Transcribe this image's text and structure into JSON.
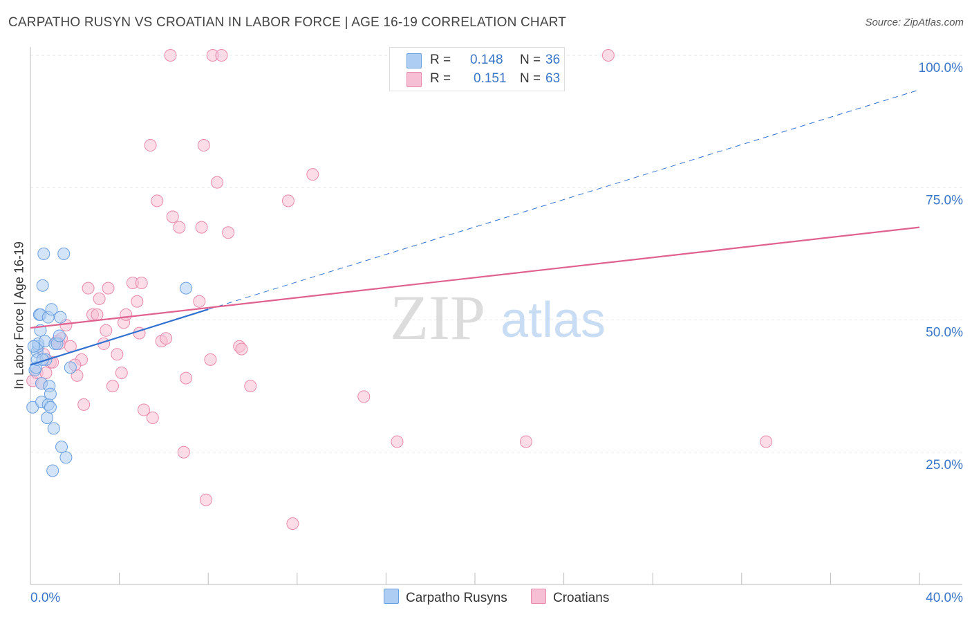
{
  "title": "CARPATHO RUSYN VS CROATIAN IN LABOR FORCE | AGE 16-19 CORRELATION CHART",
  "source": "Source: ZipAtlas.com",
  "watermark": {
    "zip": "ZIP",
    "atlas": "atlas"
  },
  "legend": {
    "r_label": "R =",
    "n_label": "N =",
    "rows": [
      {
        "name": "Carpatho Rusyns",
        "r": "0.148",
        "n": "36"
      },
      {
        "name": "Croatians",
        "r": "0.151",
        "n": "63"
      }
    ]
  },
  "colors": {
    "blue_fill": "#aecdf3",
    "blue_stroke": "#6a9fe0",
    "blue_line": "#3070d0",
    "pink_fill": "#f7bfd3",
    "pink_stroke": "#e88aab",
    "pink_line": "#e0608f",
    "axis_text": "#3a76c8"
  },
  "chart_data": {
    "type": "scatter",
    "title": "CARPATHO RUSYN VS CROATIAN IN LABOR FORCE | AGE 16-19 CORRELATION CHART",
    "xlabel": "",
    "ylabel": "In Labor Force | Age 16-19",
    "xlim": [
      0,
      40
    ],
    "ylim": [
      0,
      100
    ],
    "x_tick_labels": [
      "0.0%",
      "40.0%"
    ],
    "y_ticks": [
      25,
      50,
      75,
      100
    ],
    "y_tick_labels": [
      "25.0%",
      "50.0%",
      "75.0%",
      "100.0%"
    ],
    "grid": true,
    "legend_position": "top-center",
    "series": [
      {
        "name": "Carpatho Rusyns",
        "r": 0.148,
        "n": 36,
        "points": [
          [
            0.1,
            33.5
          ],
          [
            0.2,
            40.5
          ],
          [
            0.25,
            41.0
          ],
          [
            0.3,
            44.0
          ],
          [
            0.3,
            42.5
          ],
          [
            0.35,
            45.0
          ],
          [
            0.35,
            45.5
          ],
          [
            0.4,
            51.0
          ],
          [
            0.45,
            51.0
          ],
          [
            0.45,
            48.0
          ],
          [
            0.5,
            38.0
          ],
          [
            0.5,
            34.5
          ],
          [
            0.55,
            56.5
          ],
          [
            0.6,
            62.5
          ],
          [
            0.65,
            46.0
          ],
          [
            0.7,
            42.5
          ],
          [
            0.75,
            31.5
          ],
          [
            0.8,
            34.0
          ],
          [
            0.8,
            50.5
          ],
          [
            0.85,
            37.5
          ],
          [
            0.9,
            36.0
          ],
          [
            0.9,
            33.5
          ],
          [
            0.95,
            52.0
          ],
          [
            1.0,
            21.5
          ],
          [
            1.05,
            29.5
          ],
          [
            1.1,
            45.5
          ],
          [
            1.2,
            45.5
          ],
          [
            1.3,
            47.0
          ],
          [
            1.35,
            50.5
          ],
          [
            1.4,
            26.0
          ],
          [
            1.5,
            62.5
          ],
          [
            1.6,
            24.0
          ],
          [
            1.8,
            41.0
          ],
          [
            7.0,
            56.0
          ],
          [
            0.55,
            42.5
          ],
          [
            0.15,
            45.0
          ]
        ]
      },
      {
        "name": "Croatians",
        "r": 0.151,
        "n": 63,
        "points": [
          [
            0.1,
            38.5
          ],
          [
            0.3,
            40.0
          ],
          [
            0.5,
            38.0
          ],
          [
            0.6,
            43.5
          ],
          [
            0.9,
            42.0
          ],
          [
            1.0,
            42.0
          ],
          [
            1.2,
            46.0
          ],
          [
            1.4,
            46.5
          ],
          [
            1.6,
            49.0
          ],
          [
            1.8,
            45.0
          ],
          [
            2.1,
            39.5
          ],
          [
            2.3,
            42.5
          ],
          [
            2.4,
            34.0
          ],
          [
            2.6,
            56.0
          ],
          [
            2.8,
            51.0
          ],
          [
            3.0,
            51.0
          ],
          [
            3.1,
            54.0
          ],
          [
            3.3,
            45.5
          ],
          [
            3.4,
            48.0
          ],
          [
            3.5,
            56.0
          ],
          [
            3.7,
            37.5
          ],
          [
            3.9,
            43.5
          ],
          [
            4.1,
            40.0
          ],
          [
            4.2,
            49.5
          ],
          [
            4.3,
            51.0
          ],
          [
            4.6,
            57.0
          ],
          [
            4.8,
            53.5
          ],
          [
            4.9,
            47.5
          ],
          [
            5.0,
            57.0
          ],
          [
            5.1,
            33.0
          ],
          [
            5.5,
            31.5
          ],
          [
            5.4,
            83.0
          ],
          [
            5.7,
            72.5
          ],
          [
            5.9,
            46.0
          ],
          [
            6.1,
            46.5
          ],
          [
            6.3,
            100.0
          ],
          [
            6.4,
            69.5
          ],
          [
            6.7,
            67.5
          ],
          [
            6.9,
            25.0
          ],
          [
            7.0,
            39.0
          ],
          [
            7.6,
            53.5
          ],
          [
            7.7,
            67.5
          ],
          [
            7.8,
            83.0
          ],
          [
            7.9,
            16.0
          ],
          [
            8.1,
            42.5
          ],
          [
            8.2,
            100.0
          ],
          [
            8.4,
            76.0
          ],
          [
            8.6,
            100.0
          ],
          [
            8.9,
            66.5
          ],
          [
            9.4,
            45.0
          ],
          [
            9.5,
            44.5
          ],
          [
            9.9,
            37.5
          ],
          [
            11.6,
            72.5
          ],
          [
            11.8,
            11.5
          ],
          [
            12.7,
            77.5
          ],
          [
            15.0,
            35.5
          ],
          [
            16.5,
            27.0
          ],
          [
            22.3,
            27.0
          ],
          [
            26.0,
            100.0
          ],
          [
            33.1,
            27.0
          ],
          [
            1.3,
            45.5
          ],
          [
            0.7,
            40.0
          ],
          [
            2.0,
            41.5
          ]
        ]
      }
    ],
    "trend_lines": [
      {
        "series": "Carpatho Rusyns",
        "style": "solid",
        "from": [
          0,
          41.5
        ],
        "to": [
          8.0,
          52.0
        ]
      },
      {
        "series": "Carpatho Rusyns",
        "style": "dashed",
        "from": [
          8.0,
          52.0
        ],
        "to": [
          40.0,
          93.5
        ]
      },
      {
        "series": "Croatians",
        "style": "solid",
        "from": [
          0,
          48.5
        ],
        "to": [
          40.0,
          67.5
        ]
      }
    ]
  }
}
